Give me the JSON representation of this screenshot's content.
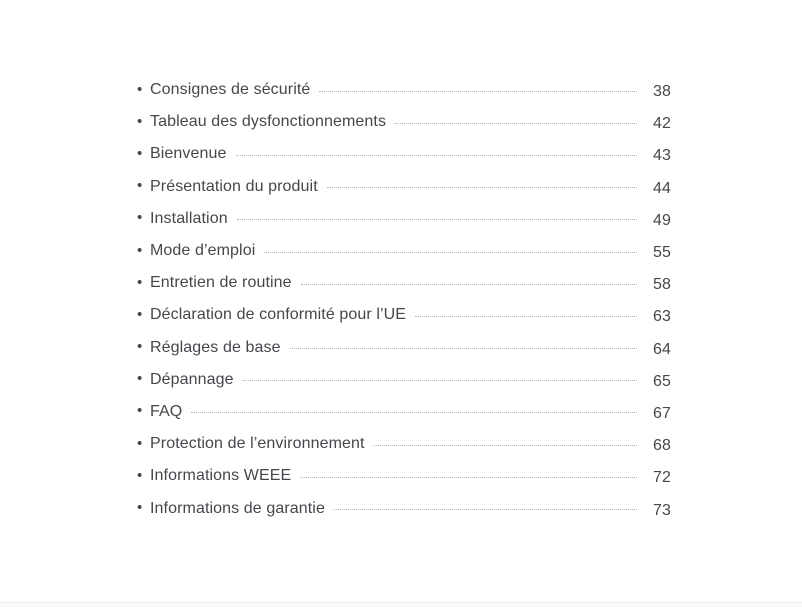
{
  "page": {
    "background_color": "#ffffff",
    "text_color": "#45474c",
    "leader_color": "#b3b3b5",
    "bottom_strip_color": "#f7f8f9"
  },
  "toc": {
    "bullet_glyph": "•",
    "items": [
      {
        "label": "Consignes de sécurité",
        "page": "38"
      },
      {
        "label": "Tableau des dysfonctionnements",
        "page": "42"
      },
      {
        "label": "Bienvenue",
        "page": "43"
      },
      {
        "label": "Présentation du produit",
        "page": "44"
      },
      {
        "label": "Installation",
        "page": "49"
      },
      {
        "label": "Mode d’emploi",
        "page": "55"
      },
      {
        "label": "Entretien de routine",
        "page": "58"
      },
      {
        "label": "Déclaration de conformité pour l’UE",
        "page": "63"
      },
      {
        "label": "Réglages de base",
        "page": "64"
      },
      {
        "label": "Dépannage",
        "page": "65"
      },
      {
        "label": "FAQ",
        "page": "67"
      },
      {
        "label": "Protection de l’environnement",
        "page": "68"
      },
      {
        "label": "Informations WEEE",
        "page": "72"
      },
      {
        "label": "Informations de garantie",
        "page": "73"
      }
    ]
  }
}
